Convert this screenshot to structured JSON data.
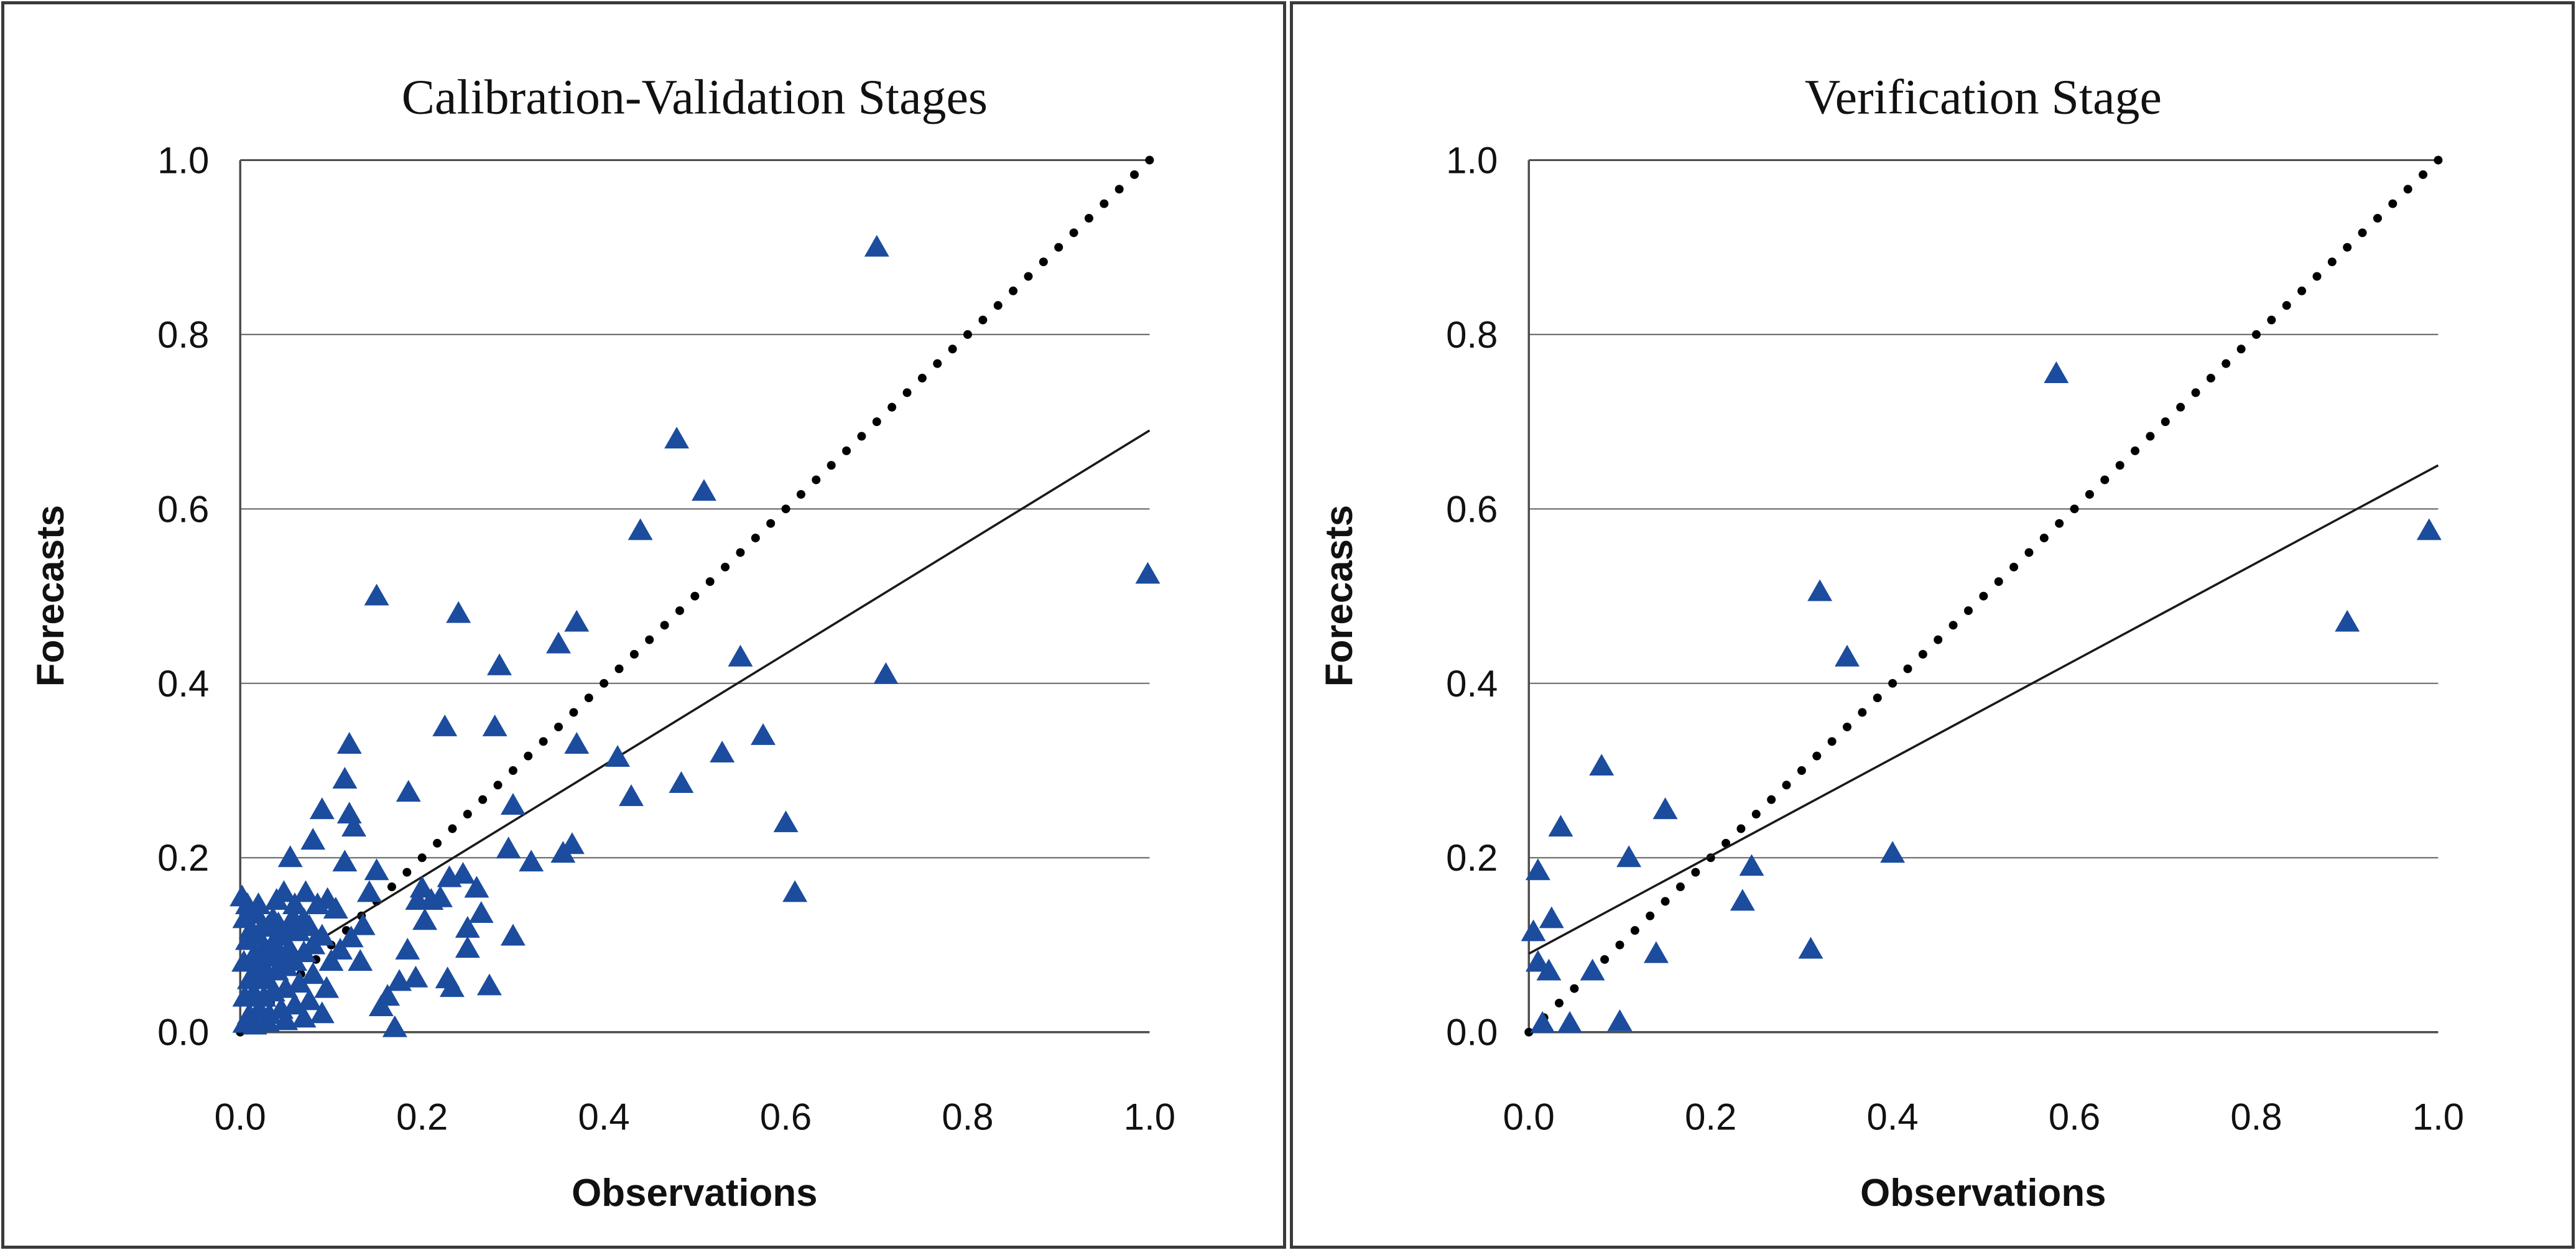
{
  "figure": {
    "background": "#ffffff",
    "panel_border_color": "#3a3a3a",
    "grid_color": "#6f6f6f",
    "axis_color": "#4d4d4d",
    "marker_color": "#1b4c9e",
    "identity_line_color": "#000000",
    "trend_line_color": "#1a1a1a"
  },
  "chart_data": [
    {
      "type": "scatter",
      "title": "Calibration-Validation Stages",
      "xlabel": "Observations",
      "ylabel": "Forecasts",
      "xlim": [
        0.0,
        1.0
      ],
      "ylim": [
        0.0,
        1.0
      ],
      "xticks": [
        "0.0",
        "0.2",
        "0.4",
        "0.6",
        "0.8",
        "1.0"
      ],
      "yticks": [
        "0.0",
        "0.2",
        "0.4",
        "0.6",
        "0.8",
        "1.0"
      ],
      "grid": "horizontal",
      "legend": "none",
      "marker": {
        "shape": "triangle-up",
        "color": "#1b4c9e"
      },
      "lines": [
        {
          "name": "identity-1to1-line",
          "style": "dotted",
          "color": "#000000",
          "from": [
            0.0,
            0.0
          ],
          "to": [
            1.0,
            1.0
          ]
        },
        {
          "name": "linear-trend-line",
          "style": "solid",
          "color": "#1a1a1a",
          "from": [
            0.0,
            0.05
          ],
          "to": [
            1.0,
            0.69
          ]
        }
      ],
      "series": [
        {
          "name": "forecast-vs-observation",
          "points": [
            [
              0.005,
              0.13
            ],
            [
              0.012,
              0.118
            ],
            [
              0.018,
              0.135
            ],
            [
              0.025,
              0.122
            ],
            [
              0.008,
              0.105
            ],
            [
              0.02,
              0.11
            ],
            [
              0.03,
              0.12
            ],
            [
              0.036,
              0.13
            ],
            [
              0.042,
              0.124
            ],
            [
              0.025,
              0.095
            ],
            [
              0.035,
              0.1
            ],
            [
              0.046,
              0.11
            ],
            [
              0.052,
              0.12
            ],
            [
              0.058,
              0.131
            ],
            [
              0.004,
              0.08
            ],
            [
              0.014,
              0.086
            ],
            [
              0.024,
              0.079
            ],
            [
              0.034,
              0.086
            ],
            [
              0.044,
              0.09
            ],
            [
              0.054,
              0.096
            ],
            [
              0.064,
              0.115
            ],
            [
              0.07,
              0.129
            ],
            [
              0.076,
              0.121
            ],
            [
              0.01,
              0.06
            ],
            [
              0.02,
              0.066
            ],
            [
              0.03,
              0.06
            ],
            [
              0.04,
              0.07
            ],
            [
              0.05,
              0.075
            ],
            [
              0.06,
              0.081
            ],
            [
              0.07,
              0.091
            ],
            [
              0.08,
              0.1
            ],
            [
              0.09,
              0.11
            ],
            [
              0.005,
              0.04
            ],
            [
              0.015,
              0.045
            ],
            [
              0.026,
              0.04
            ],
            [
              0.036,
              0.046
            ],
            [
              0.05,
              0.05
            ],
            [
              0.065,
              0.056
            ],
            [
              0.08,
              0.066
            ],
            [
              0.01,
              0.02
            ],
            [
              0.021,
              0.026
            ],
            [
              0.032,
              0.02
            ],
            [
              0.045,
              0.026
            ],
            [
              0.06,
              0.031
            ],
            [
              0.076,
              0.036
            ],
            [
              0.005,
              0.01
            ],
            [
              0.016,
              0.008
            ],
            [
              0.03,
              0.011
            ],
            [
              0.05,
              0.013
            ],
            [
              0.07,
              0.016
            ],
            [
              0.09,
              0.021
            ],
            [
              0.095,
              0.05
            ],
            [
              0.1,
              0.081
            ],
            [
              0.105,
              0.141
            ],
            [
              0.096,
              0.152
            ],
            [
              0.085,
              0.146
            ],
            [
              0.06,
              0.146
            ],
            [
              0.04,
              0.151
            ],
            [
              0.02,
              0.146
            ],
            [
              0.008,
              0.146
            ],
            [
              0.002,
              0.155
            ],
            [
              0.048,
              0.16
            ],
            [
              0.072,
              0.16
            ],
            [
              0.11,
              0.094
            ],
            [
              0.122,
              0.108
            ],
            [
              0.132,
              0.081
            ],
            [
              0.135,
              0.122
            ],
            [
              0.142,
              0.16
            ],
            [
              0.15,
              0.185
            ],
            [
              0.155,
              0.029
            ],
            [
              0.162,
              0.041
            ],
            [
              0.17,
              0.005
            ],
            [
              0.175,
              0.058
            ],
            [
              0.184,
              0.094
            ],
            [
              0.193,
              0.062
            ],
            [
              0.195,
              0.151
            ],
            [
              0.2,
              0.165
            ],
            [
              0.203,
              0.128
            ],
            [
              0.21,
              0.151
            ],
            [
              0.22,
              0.154
            ],
            [
              0.228,
              0.061
            ],
            [
              0.23,
              0.177
            ],
            [
              0.233,
              0.051
            ],
            [
              0.245,
              0.181
            ],
            [
              0.25,
              0.119
            ],
            [
              0.25,
              0.096
            ],
            [
              0.26,
              0.165
            ],
            [
              0.265,
              0.136
            ],
            [
              0.274,
              0.053
            ],
            [
              0.055,
              0.2
            ],
            [
              0.115,
              0.195
            ],
            [
              0.08,
              0.22
            ],
            [
              0.09,
              0.255
            ],
            [
              0.12,
              0.25
            ],
            [
              0.125,
              0.235
            ],
            [
              0.115,
              0.29
            ],
            [
              0.12,
              0.33
            ],
            [
              0.185,
              0.275
            ],
            [
              0.225,
              0.35
            ],
            [
              0.28,
              0.35
            ],
            [
              0.285,
              0.42
            ],
            [
              0.295,
              0.21
            ],
            [
              0.3,
              0.26
            ],
            [
              0.3,
              0.11
            ],
            [
              0.32,
              0.195
            ],
            [
              0.355,
              0.205
            ],
            [
              0.365,
              0.215
            ],
            [
              0.37,
              0.33
            ],
            [
              0.415,
              0.315
            ],
            [
              0.43,
              0.27
            ],
            [
              0.485,
              0.285
            ],
            [
              0.53,
              0.32
            ],
            [
              0.575,
              0.34
            ],
            [
              0.6,
              0.24
            ],
            [
              0.61,
              0.16
            ],
            [
              0.15,
              0.5
            ],
            [
              0.24,
              0.48
            ],
            [
              0.35,
              0.445
            ],
            [
              0.37,
              0.47
            ],
            [
              0.44,
              0.575
            ],
            [
              0.48,
              0.68
            ],
            [
              0.51,
              0.62
            ],
            [
              0.55,
              0.43
            ],
            [
              0.7,
              0.9
            ],
            [
              0.71,
              0.41
            ],
            [
              0.998,
              0.525
            ]
          ]
        }
      ]
    },
    {
      "type": "scatter",
      "title": "Verification Stage",
      "xlabel": "Observations",
      "ylabel": "Forecasts",
      "xlim": [
        0.0,
        1.0
      ],
      "ylim": [
        0.0,
        1.0
      ],
      "xticks": [
        "0.0",
        "0.2",
        "0.4",
        "0.6",
        "0.8",
        "1.0"
      ],
      "yticks": [
        "0.0",
        "0.2",
        "0.4",
        "0.6",
        "0.8",
        "1.0"
      ],
      "grid": "horizontal",
      "legend": "none",
      "marker": {
        "shape": "triangle-up",
        "color": "#1b4c9e"
      },
      "lines": [
        {
          "name": "identity-1to1-line",
          "style": "dotted",
          "color": "#000000",
          "from": [
            0.0,
            0.0
          ],
          "to": [
            1.0,
            1.0
          ]
        },
        {
          "name": "linear-trend-line",
          "style": "solid",
          "color": "#1a1a1a",
          "from": [
            0.0,
            0.09
          ],
          "to": [
            1.0,
            0.65
          ]
        }
      ],
      "series": [
        {
          "name": "forecast-vs-observation",
          "points": [
            [
              0.58,
              0.755
            ],
            [
              0.99,
              0.575
            ],
            [
              0.9,
              0.47
            ],
            [
              0.35,
              0.43
            ],
            [
              0.32,
              0.505
            ],
            [
              0.08,
              0.305
            ],
            [
              0.15,
              0.255
            ],
            [
              0.035,
              0.235
            ],
            [
              0.11,
              0.2
            ],
            [
              0.4,
              0.205
            ],
            [
              0.01,
              0.185
            ],
            [
              0.245,
              0.19
            ],
            [
              0.235,
              0.15
            ],
            [
              0.005,
              0.115
            ],
            [
              0.025,
              0.13
            ],
            [
              0.01,
              0.08
            ],
            [
              0.022,
              0.07
            ],
            [
              0.07,
              0.07
            ],
            [
              0.14,
              0.09
            ],
            [
              0.31,
              0.095
            ],
            [
              0.015,
              0.01
            ],
            [
              0.045,
              0.01
            ],
            [
              0.1,
              0.012
            ]
          ]
        }
      ]
    }
  ]
}
